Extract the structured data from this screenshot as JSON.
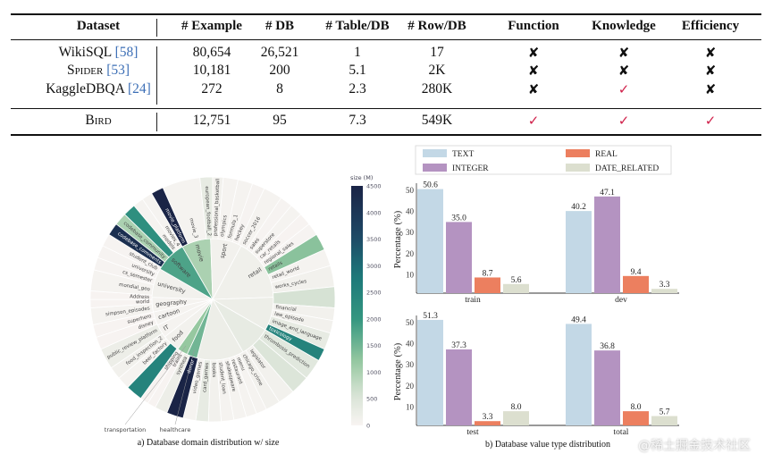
{
  "table": {
    "headers": [
      "Dataset",
      "# Example",
      "# DB",
      "# Table/DB",
      "# Row/DB",
      "Function",
      "Knowledge",
      "Efficiency"
    ],
    "rows": [
      {
        "name": "WikiSQL",
        "cite": "[58]",
        "example": "80,654",
        "db": "26,521",
        "table_db": "1",
        "row_db": "17",
        "function": "✘",
        "knowledge": "✘",
        "efficiency": "✘"
      },
      {
        "name": "Spider",
        "cite": "[53]",
        "example": "10,181",
        "db": "200",
        "table_db": "5.1",
        "row_db": "2K",
        "function": "✘",
        "knowledge": "✘",
        "efficiency": "✘"
      },
      {
        "name": "KaggleDBQA",
        "cite": "[24]",
        "example": "272",
        "db": "8",
        "table_db": "2.3",
        "row_db": "280K",
        "function": "✘",
        "knowledge": "✓",
        "efficiency": "✘"
      },
      {
        "name": "Bird",
        "cite": "",
        "example": "12,751",
        "db": "95",
        "table_db": "7.3",
        "row_db": "549K",
        "function": "✓",
        "knowledge": "✓",
        "efficiency": "✓"
      }
    ],
    "check_color": "#d0204a",
    "cite_color": "#3d6fb6"
  },
  "chart_data": [
    {
      "type": "sunburst",
      "caption": "a) Database domain distribution w/ size",
      "colorbar": {
        "title": "size (M)",
        "ticks": [
          0,
          500,
          1000,
          1500,
          2000,
          2500,
          3000,
          3500,
          4000,
          4500
        ],
        "range": [
          0,
          4500
        ]
      },
      "inner": [
        {
          "label": "movie",
          "share": 28,
          "size": 1000
        },
        {
          "label": "sport",
          "share": 30,
          "size": 100
        },
        {
          "label": "retail",
          "share": 60,
          "size": 150
        },
        {
          "label": "",
          "share": 32,
          "size": 200
        },
        {
          "label": "",
          "share": 30,
          "size": 300
        },
        {
          "label": "",
          "share": 45,
          "size": 200
        },
        {
          "label": "healthcare",
          "share": 10,
          "size": 1500
        },
        {
          "label": "transportation",
          "share": 10,
          "size": 1200
        },
        {
          "label": "food",
          "share": 17,
          "size": 100
        },
        {
          "label": "IT",
          "share": 13,
          "size": 50
        },
        {
          "label": "cartoon",
          "share": 13,
          "size": 50
        },
        {
          "label": "geography",
          "share": 14,
          "size": 50
        },
        {
          "label": "university",
          "share": 28,
          "size": 100
        },
        {
          "label": "software",
          "share": 30,
          "size": 1800
        }
      ],
      "outer": [
        {
          "label": "movie_platform",
          "share": 6,
          "size": 4500
        },
        {
          "label": "movie_3",
          "share": 18,
          "size": 50
        },
        {
          "label": "european_football_2",
          "share": 6,
          "size": 300
        },
        {
          "label": "professional_basketball",
          "share": 5,
          "size": 100
        },
        {
          "label": "olympics",
          "share": 7,
          "size": 50
        },
        {
          "label": "formula_1",
          "share": 7,
          "size": 50
        },
        {
          "label": "hockey",
          "share": 6,
          "size": 30
        },
        {
          "label": "soccer_2016",
          "share": 9,
          "size": 50
        },
        {
          "label": "sales",
          "share": 6,
          "size": 30
        },
        {
          "label": "superstore",
          "share": 6,
          "size": 50
        },
        {
          "label": "car_retails",
          "share": 6,
          "size": 20
        },
        {
          "label": "regional_sales",
          "share": 6,
          "size": 30
        },
        {
          "label": "retails",
          "share": 8,
          "size": 1300
        },
        {
          "label": "retail_world",
          "share": 8,
          "size": 50
        },
        {
          "label": "works_cycles",
          "share": 10,
          "size": 100
        },
        {
          "label": "",
          "share": 10,
          "size": 600
        },
        {
          "label": "financial",
          "share": 6,
          "size": 100
        },
        {
          "label": "law_episode",
          "share": 6,
          "size": 100
        },
        {
          "label": "image_and_language",
          "share": 8,
          "size": 300
        },
        {
          "label": "toxicology",
          "share": 6,
          "size": 2500
        },
        {
          "label": "thrombosis_prediction",
          "share": 10,
          "size": 400
        },
        {
          "label": "",
          "share": 9,
          "size": 500
        },
        {
          "label": "legislator",
          "share": 8,
          "size": 100
        },
        {
          "label": "chicago_crime",
          "share": 7,
          "size": 100
        },
        {
          "label": "menu",
          "share": 5,
          "size": 50
        },
        {
          "label": "restaurant",
          "share": 5,
          "size": 50
        },
        {
          "label": "shakespeare",
          "share": 6,
          "size": 50
        },
        {
          "label": "student_loan",
          "share": 6,
          "size": 50
        },
        {
          "label": "books",
          "share": 6,
          "size": 100
        },
        {
          "label": "card_games",
          "share": 6,
          "size": 300
        },
        {
          "label": "video_games",
          "share": 6,
          "size": 50
        },
        {
          "label": "donor",
          "share": 8,
          "size": 4500
        },
        {
          "label": "synthea",
          "share": 6,
          "size": 200
        },
        {
          "label": "trains",
          "share": 4,
          "size": 20
        },
        {
          "label": "shipping",
          "share": 4,
          "size": 20
        },
        {
          "label": "",
          "share": 8,
          "size": 2500
        },
        {
          "label": "beer_factory",
          "share": 6,
          "size": 50
        },
        {
          "label": "food_inspection_2",
          "share": 6,
          "size": 100
        },
        {
          "label": "public_review_platform",
          "share": 10,
          "size": 200
        },
        {
          "label": "disney",
          "share": 6,
          "size": 20
        },
        {
          "label": "superhero",
          "share": 6,
          "size": 20
        },
        {
          "label": "simpson_episodes",
          "share": 8,
          "size": 50
        },
        {
          "label": "world",
          "share": 4,
          "size": 20
        },
        {
          "label": "Address",
          "share": 4,
          "size": 20
        },
        {
          "label": "mondial_geo",
          "share": 10,
          "size": 50
        },
        {
          "label": "cs_semester",
          "share": 6,
          "size": 30
        },
        {
          "label": "university",
          "share": 6,
          "size": 30
        },
        {
          "label": "student_club",
          "share": 6,
          "size": 30
        },
        {
          "label": "codebase_comments",
          "share": 6,
          "size": 4200
        },
        {
          "label": "codebase_community",
          "share": 6,
          "size": 1000
        },
        {
          "label": "",
          "share": 6,
          "size": 2200
        },
        {
          "label": "models",
          "share": 5,
          "size": 50
        },
        {
          "label": "movies_4",
          "share": 5,
          "size": 50
        }
      ]
    },
    {
      "type": "bar",
      "caption": "b) Database value type distribution",
      "ylabel": "Percentage (%)",
      "yticks": [
        10,
        20,
        30,
        40,
        50
      ],
      "legend": [
        "TEXT",
        "REAL",
        "INTEGER",
        "DATE_RELATED"
      ],
      "series_order": [
        "TEXT",
        "INTEGER",
        "REAL",
        "DATE_RELATED"
      ],
      "colors": {
        "TEXT": "#c3d8e6",
        "INTEGER": "#b493c1",
        "REAL": "#ec7f5f",
        "DATE_RELATED": "#dcdfcf"
      },
      "panels": [
        {
          "categories": [
            {
              "name": "train",
              "values": [
                50.6,
                35.0,
                8.7,
                5.6
              ]
            },
            {
              "name": "dev",
              "values": [
                40.2,
                47.1,
                9.4,
                3.3
              ]
            }
          ]
        },
        {
          "categories": [
            {
              "name": "test",
              "values": [
                51.3,
                37.3,
                3.3,
                8.0
              ]
            },
            {
              "name": "total",
              "values": [
                49.4,
                36.8,
                8.0,
                5.7
              ]
            }
          ]
        }
      ]
    }
  ],
  "watermark": "@稀土掘金技术社区"
}
